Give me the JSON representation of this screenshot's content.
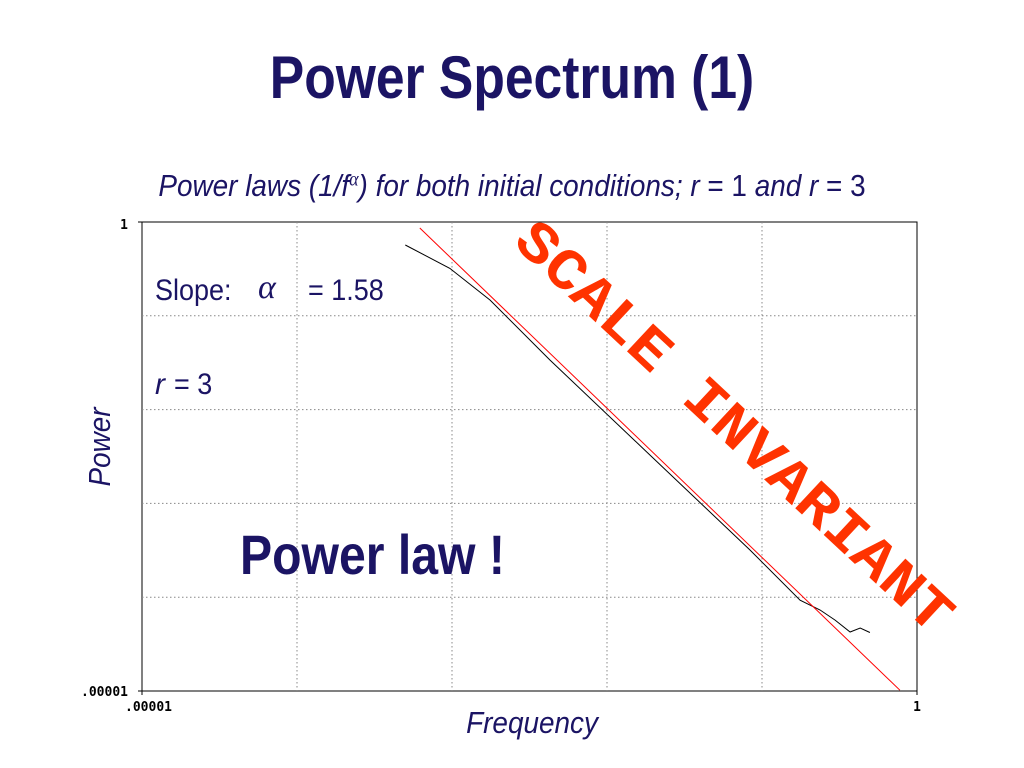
{
  "chart_data": {
    "type": "line",
    "title": "Power Spectrum (1)",
    "subtitle_parts": [
      {
        "text": "Power laws (1/f",
        "italic": true
      },
      {
        "text": "α",
        "italic": true,
        "sup": true
      },
      {
        "text": ") for both initial conditions; ",
        "italic": true
      },
      {
        "text": "r",
        "italic": true
      },
      {
        "text": " = 1 ",
        "italic": false
      },
      {
        "text": "and ",
        "italic": true
      },
      {
        "text": "r",
        "italic": true
      },
      {
        "text": " = 3",
        "italic": false
      }
    ],
    "x_label": "Frequency",
    "y_label": "Power",
    "x_log": true,
    "y_log": true,
    "grid": true,
    "xlim": [
      1e-05,
      1
    ],
    "ylim": [
      1e-05,
      1
    ],
    "xticks": [
      {
        "value": 1e-05,
        "label": ".00001"
      },
      1
    ],
    "yticks": [
      {
        "value": 1e-05,
        "label": ".00001"
      },
      1
    ],
    "series": [
      {
        "color": "#000000",
        "x": [
          0.0005,
          0.00097,
          0.00176,
          0.00428,
          0.0189,
          0.0838,
          0.176,
          0.237,
          0.296,
          0.37,
          0.43,
          0.497
        ],
        "values": [
          0.569,
          0.32,
          0.147,
          0.0338,
          0.00328,
          0.000318,
          9.3e-05,
          7.3e-05,
          5.7e-05,
          4.26e-05,
          4.7e-05,
          4.2e-05
        ]
      },
      {
        "color": "#ff0000",
        "x": [
          0.00062,
          0.776
        ],
        "values": [
          0.863,
          1.02e-05
        ]
      }
    ],
    "annotations": {
      "slope_label": "Slope:",
      "slope_symbol": "α",
      "slope_value": "= 1.58",
      "r_symbol": "r",
      "r_value": "= 3",
      "power_law": "Power law !",
      "scale_invariant": "SCALE INVARIANT"
    }
  }
}
